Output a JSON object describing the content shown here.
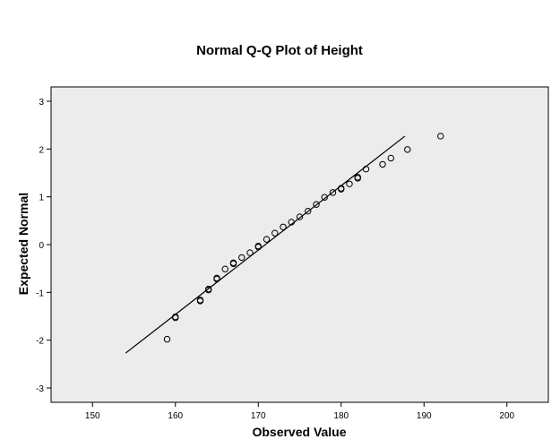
{
  "chart_data": {
    "type": "scatter",
    "title": "Normal Q-Q Plot of Height",
    "xlabel": "Observed Value",
    "ylabel": "Expected Normal",
    "xlim": [
      145,
      205
    ],
    "ylim": [
      -3.3,
      3.3
    ],
    "x_ticks": [
      150,
      160,
      170,
      180,
      190,
      200
    ],
    "y_ticks": [
      -3,
      -2,
      -1,
      0,
      1,
      2,
      3
    ],
    "grid": false,
    "legend": "none",
    "colors": {
      "plot_background": "#ececec",
      "page_background": "#ffffff",
      "marker": "#000000",
      "line": "#000000"
    },
    "reference_line": {
      "x": [
        154,
        187.7
      ],
      "y": [
        -2.27,
        2.27
      ]
    },
    "series": [
      {
        "points": [
          [
            159,
            -1.98
          ],
          [
            160,
            -1.51
          ],
          [
            160,
            -1.53
          ],
          [
            163,
            -1.16
          ],
          [
            163,
            -1.18
          ],
          [
            164,
            -0.93
          ],
          [
            164,
            -0.95
          ],
          [
            165,
            -0.7
          ],
          [
            165,
            -0.72
          ],
          [
            166,
            -0.51
          ],
          [
            167,
            -0.38
          ],
          [
            167,
            -0.4
          ],
          [
            168,
            -0.27
          ],
          [
            169,
            -0.17
          ],
          [
            170,
            -0.05
          ],
          [
            170,
            -0.03
          ],
          [
            171,
            0.11
          ],
          [
            172,
            0.24
          ],
          [
            173,
            0.37
          ],
          [
            174,
            0.47
          ],
          [
            175,
            0.58
          ],
          [
            176,
            0.7
          ],
          [
            177,
            0.84
          ],
          [
            178,
            0.99
          ],
          [
            179,
            1.09
          ],
          [
            180,
            1.16
          ],
          [
            180,
            1.18
          ],
          [
            181,
            1.27
          ],
          [
            182,
            1.39
          ],
          [
            182,
            1.41
          ],
          [
            183,
            1.58
          ],
          [
            185,
            1.68
          ],
          [
            186,
            1.81
          ],
          [
            188,
            1.99
          ],
          [
            192,
            2.27
          ]
        ]
      }
    ]
  }
}
